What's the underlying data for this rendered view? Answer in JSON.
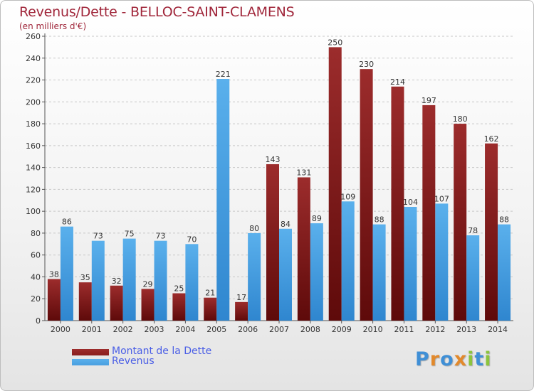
{
  "title": "Revenus/Dette - BELLOC-SAINT-CLAMENS",
  "subtitle": "(en milliers d'€)",
  "colors": {
    "dette": "#8a1e1e",
    "revenus": "#4a9fe0",
    "title": "#a0263a",
    "legend_text": "#4a5ee6"
  },
  "legend": {
    "dette_label": "Montant de la Dette",
    "revenus_label": "Revenus"
  },
  "logo": {
    "letters": [
      "P",
      "r",
      "o",
      "x",
      "i",
      "t",
      "i"
    ],
    "colors": [
      "#3f8fd6",
      "#e2892b",
      "#3f8fd6",
      "#e2892b",
      "#8cc43d",
      "#3f8fd6",
      "#8cc43d"
    ]
  },
  "chart_data": {
    "type": "bar",
    "title": "Revenus/Dette - BELLOC-SAINT-CLAMENS",
    "subtitle": "(en milliers d'€)",
    "categories": [
      "2000",
      "2001",
      "2002",
      "2003",
      "2004",
      "2005",
      "2006",
      "2007",
      "2008",
      "2009",
      "2010",
      "2011",
      "2012",
      "2013",
      "2014"
    ],
    "series": [
      {
        "name": "Montant de la Dette",
        "values": [
          38,
          35,
          32,
          29,
          25,
          21,
          17,
          143,
          131,
          250,
          230,
          214,
          197,
          180,
          162
        ]
      },
      {
        "name": "Revenus",
        "values": [
          86,
          73,
          75,
          73,
          70,
          221,
          80,
          84,
          89,
          109,
          88,
          104,
          107,
          78,
          88
        ]
      }
    ],
    "ylim": [
      0,
      260
    ],
    "yticks": [
      0,
      20,
      40,
      60,
      80,
      100,
      120,
      140,
      160,
      180,
      200,
      220,
      240,
      260
    ],
    "grid": "horizontal-dashed",
    "legend_position": "bottom-left"
  }
}
